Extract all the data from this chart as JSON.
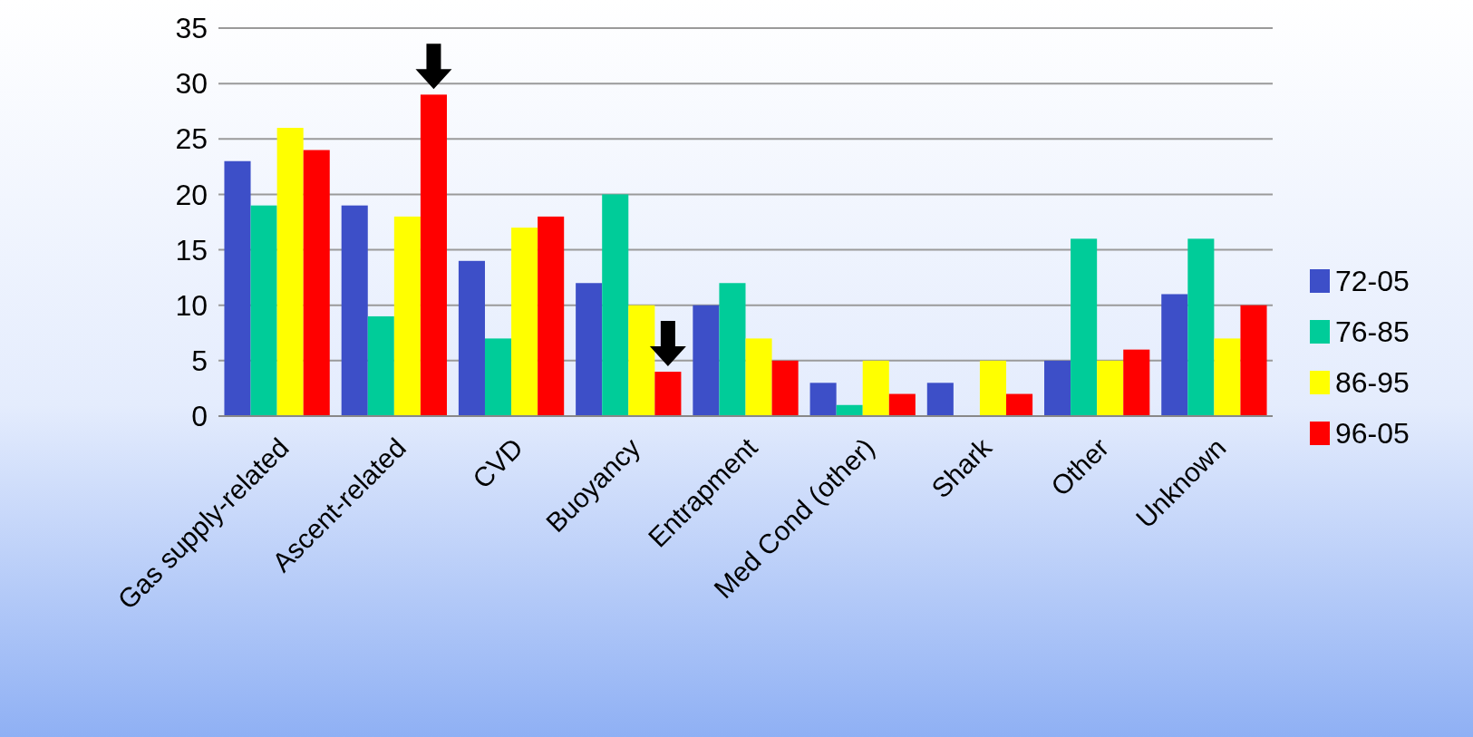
{
  "chart_data": {
    "type": "bar",
    "categories": [
      "Gas supply-related",
      "Ascent-related",
      "CVD",
      "Buoyancy",
      "Entrapment",
      "Med Cond (other)",
      "Shark",
      "Other",
      "Unknown"
    ],
    "series": [
      {
        "name": "72-05",
        "color": "#3d4fc8",
        "values": [
          23,
          19,
          14,
          12,
          10,
          3,
          3,
          5,
          11
        ]
      },
      {
        "name": "76-85",
        "color": "#00cc99",
        "values": [
          19,
          9,
          7,
          20,
          12,
          1,
          null,
          16,
          16
        ]
      },
      {
        "name": "86-95",
        "color": "#ffff00",
        "values": [
          26,
          18,
          17,
          10,
          7,
          5,
          5,
          5,
          7
        ]
      },
      {
        "name": "96-05",
        "color": "#ff0000",
        "values": [
          24,
          29,
          18,
          4,
          5,
          2,
          2,
          6,
          10
        ]
      }
    ],
    "ylim": [
      0,
      35
    ],
    "yticks": [
      0,
      5,
      10,
      15,
      20,
      25,
      30,
      35
    ],
    "grid": "y",
    "legend": "right"
  }
}
